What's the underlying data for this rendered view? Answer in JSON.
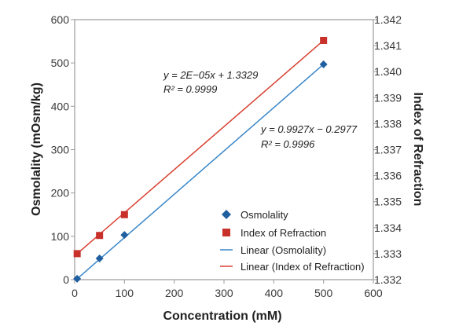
{
  "chart_data": {
    "type": "scatter",
    "xlabel": "Concentration (mM)",
    "ylabel": "Osmolality (mOsm/kg)",
    "y2label": "Index of Refraction",
    "xlim": [
      0,
      600
    ],
    "ylim": [
      0,
      600
    ],
    "y2lim": [
      1.332,
      1.342
    ],
    "xticks": [
      "0",
      "100",
      "200",
      "300",
      "400",
      "500",
      "600"
    ],
    "yticks": [
      "0",
      "100",
      "200",
      "300",
      "400",
      "500",
      "600"
    ],
    "y2ticks": [
      "1.332",
      "1.333",
      "1.334",
      "1.335",
      "1.336",
      "1.337",
      "1.338",
      "1.339",
      "1.340",
      "1.341",
      "1.342"
    ],
    "grid": false,
    "legend_position": "bottom-right",
    "series": [
      {
        "name": "Osmolality",
        "axis": "left",
        "marker": "diamond",
        "color": "#1f5fa0",
        "x": [
          5,
          50,
          100,
          500
        ],
        "y": [
          2,
          49,
          103,
          497
        ]
      },
      {
        "name": "Index of Refraction",
        "axis": "right",
        "marker": "square",
        "color": "#c8302a",
        "x": [
          5,
          50,
          100,
          500
        ],
        "y": [
          1.333,
          1.3337,
          1.3345,
          1.3412
        ]
      }
    ],
    "trendlines": [
      {
        "name": "Linear (Osmolality)",
        "axis": "left",
        "color": "#3a86c8",
        "x": [
          5,
          500
        ],
        "y": [
          2,
          497
        ]
      },
      {
        "name": "Linear (Index of Refraction)",
        "axis": "right",
        "color": "#d84030",
        "x": [
          5,
          500
        ],
        "y": [
          1.333,
          1.3412
        ]
      }
    ],
    "annotations": {
      "refraction_eq": {
        "line1": "y = 2E−05x + 1.3329",
        "line2": "R² = 0.9999"
      },
      "osmolality_eq": {
        "line1": "y = 0.9927x − 0.2977",
        "line2": "R² = 0.9996"
      }
    }
  }
}
